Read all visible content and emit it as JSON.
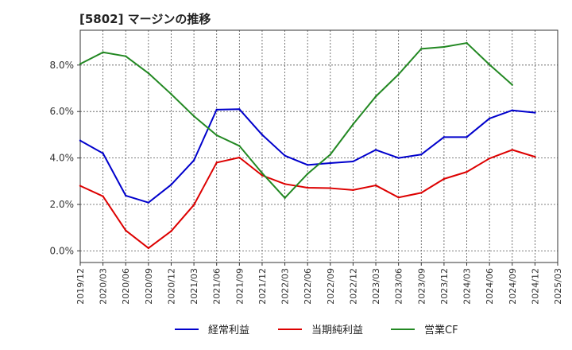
{
  "chart_data": {
    "type": "line",
    "title": "[5802]  マージンの推移",
    "xlabel": "",
    "ylabel": "",
    "ylim": [
      -0.5,
      9.5
    ],
    "yticks": [
      0.0,
      2.0,
      4.0,
      6.0,
      8.0
    ],
    "ytick_labels": [
      "0.0%",
      "2.0%",
      "4.0%",
      "6.0%",
      "8.0%"
    ],
    "x": [
      "2019/12",
      "2020/03",
      "2020/06",
      "2020/09",
      "2020/12",
      "2021/03",
      "2021/06",
      "2021/09",
      "2021/12",
      "2022/03",
      "2022/06",
      "2022/09",
      "2022/12",
      "2023/03",
      "2023/06",
      "2023/09",
      "2023/12",
      "2024/03",
      "2024/06",
      "2024/09",
      "2024/12",
      "2025/03"
    ],
    "grid": true,
    "legend_position": "bottom",
    "series": [
      {
        "name": "経常利益",
        "color": "#0000cc",
        "values": [
          4.75,
          4.2,
          2.38,
          2.08,
          2.85,
          3.9,
          6.08,
          6.1,
          5.0,
          4.1,
          3.7,
          3.78,
          3.85,
          4.35,
          4.0,
          4.15,
          4.9,
          4.9,
          5.7,
          6.05,
          5.95,
          null
        ]
      },
      {
        "name": "当期純利益",
        "color": "#dd0000",
        "values": [
          2.8,
          2.35,
          0.88,
          0.12,
          0.85,
          1.98,
          3.8,
          4.02,
          3.25,
          2.88,
          2.72,
          2.7,
          2.62,
          2.82,
          2.3,
          2.5,
          3.1,
          3.4,
          3.98,
          4.35,
          4.05,
          null
        ]
      },
      {
        "name": "営業CF",
        "color": "#228822",
        "values": [
          8.05,
          8.55,
          8.38,
          7.65,
          6.75,
          5.8,
          4.98,
          4.52,
          3.35,
          2.28,
          3.32,
          4.15,
          5.45,
          6.65,
          7.6,
          8.7,
          8.78,
          8.95,
          8.02,
          7.15,
          null,
          null
        ]
      }
    ]
  }
}
